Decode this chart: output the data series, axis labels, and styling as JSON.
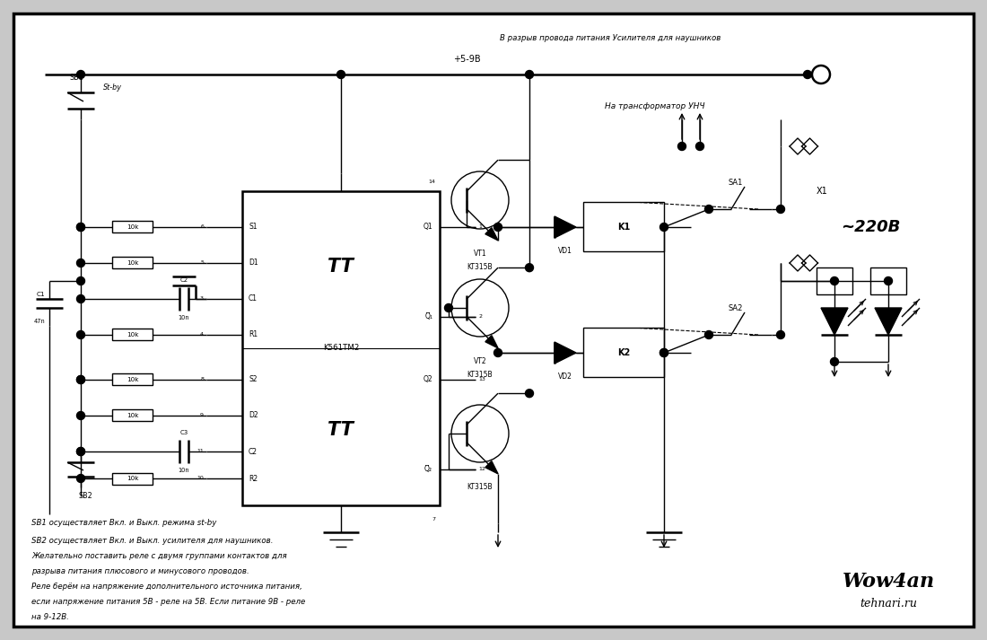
{
  "bg_color": "#c8c8c8",
  "inner_bg": "#ffffff",
  "line_color": "#000000",
  "fig_width": 11.0,
  "fig_height": 7.13,
  "dpi": 100,
  "title_wow4an": "Wow4an",
  "title_tehnari": "tehnari.ru",
  "power_label": "+5-9B",
  "transformer_label": "На трансформатор УНЧ",
  "headphone_label": "В разрыв провода питания Усилителя для наушников",
  "note1": "SB1 осуществляет Вкл. и Выкл. режима st-by",
  "note2_line1": "SB2 осуществляет Вкл. и Выкл. усилителя для наушников.",
  "note2_line2": "Желательно поставить реле с двумя группами контактов для",
  "note2_line3": "разрыва питания плюсового и минусового проводов.",
  "note2_line4": "Реле берём на напряжение дополнительного источника питания,",
  "note2_line5": "если напряжение питания 5В - реле на 5В. Если питание 9В - реле",
  "note2_line6": "на 9-12В."
}
